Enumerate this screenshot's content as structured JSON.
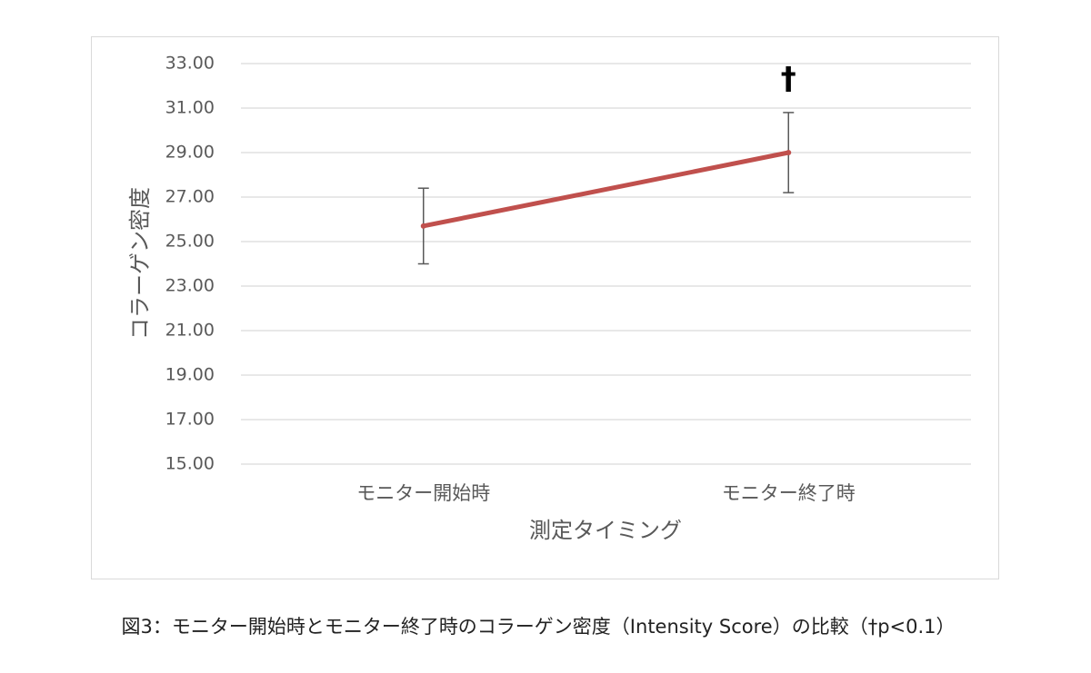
{
  "chart_data": {
    "type": "line",
    "categories": [
      "モニター開始時",
      "モニター終了時"
    ],
    "values": [
      25.7,
      29.0
    ],
    "errors": [
      1.7,
      1.8
    ],
    "color": "#c0504d",
    "ylabel": "コラーゲン密度",
    "xlabel": "測定タイミング",
    "annotation": "†",
    "caption": "図3：モニター開始時とモニター終了時のコラーゲン密度（Intensity Score）の比較（†p<0.1）",
    "ylim": [
      15,
      33
    ],
    "yticks": [
      {
        "value": 15,
        "label": "15.00"
      },
      {
        "value": 17,
        "label": "17.00"
      },
      {
        "value": 19,
        "label": "19.00"
      },
      {
        "value": 21,
        "label": "21.00"
      },
      {
        "value": 23,
        "label": "23.00"
      },
      {
        "value": 25,
        "label": "25.00"
      },
      {
        "value": 27,
        "label": "27.00"
      },
      {
        "value": 29,
        "label": "29.00"
      },
      {
        "value": 31,
        "label": "31.00"
      },
      {
        "value": 33,
        "label": "33.00"
      }
    ],
    "grid": true
  }
}
